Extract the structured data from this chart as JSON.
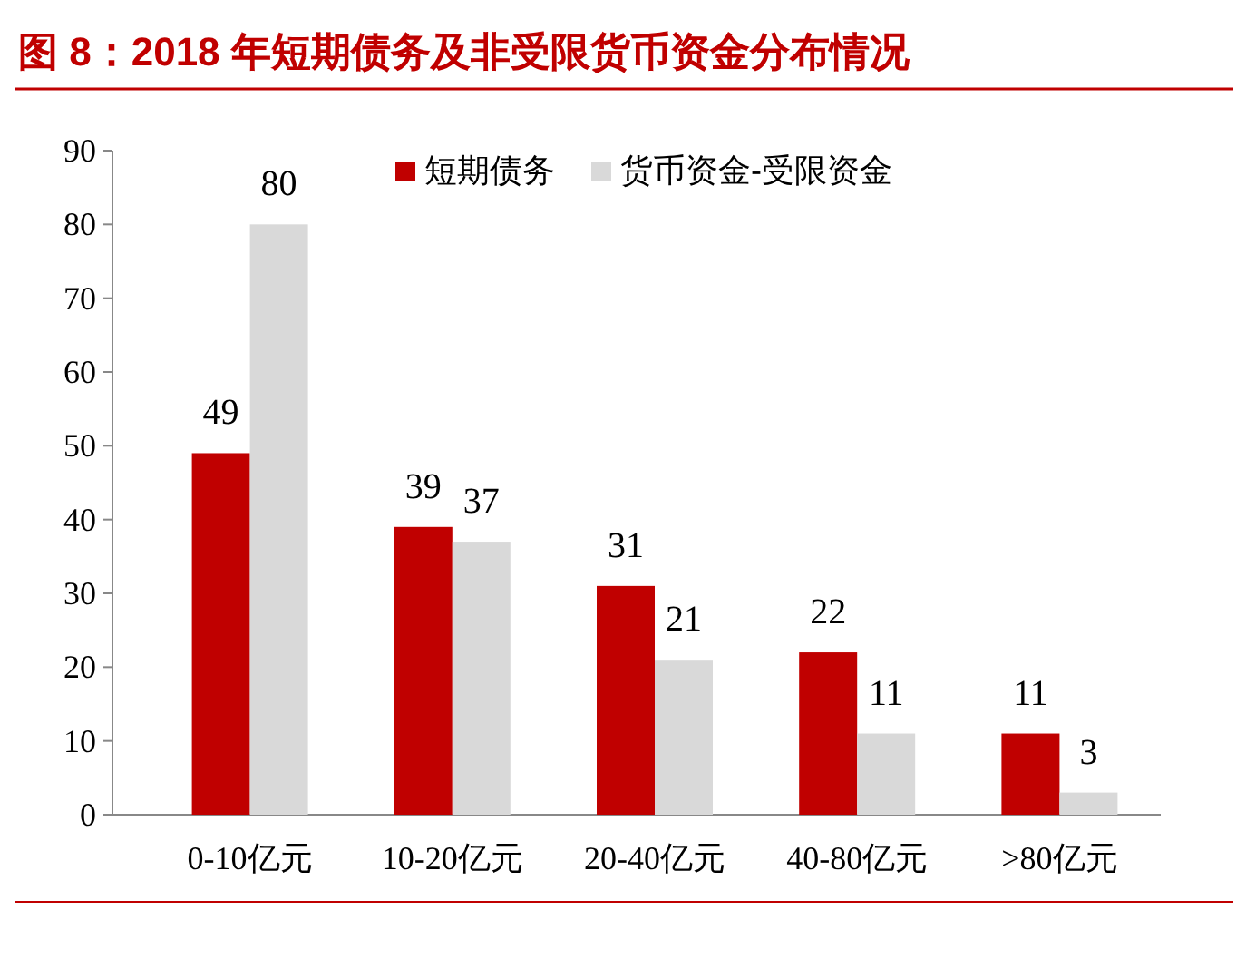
{
  "chart_data": {
    "type": "bar",
    "title": "图 8：2018 年短期债务及非受限货币资金分布情况",
    "categories": [
      "0-10亿元",
      "10-20亿元",
      "20-40亿元",
      "40-80亿元",
      ">80亿元"
    ],
    "series": [
      {
        "name": "短期债务",
        "color": "#c00000",
        "values": [
          49,
          39,
          31,
          22,
          11
        ]
      },
      {
        "name": "货币资金-受限资金",
        "color": "#d9d9d9",
        "values": [
          80,
          37,
          21,
          11,
          3
        ]
      }
    ],
    "ylim": [
      0,
      90
    ],
    "yticks": [
      0,
      10,
      20,
      30,
      40,
      50,
      60,
      70,
      80,
      90
    ],
    "data_labels": true,
    "legend": "top right",
    "grid": false
  }
}
